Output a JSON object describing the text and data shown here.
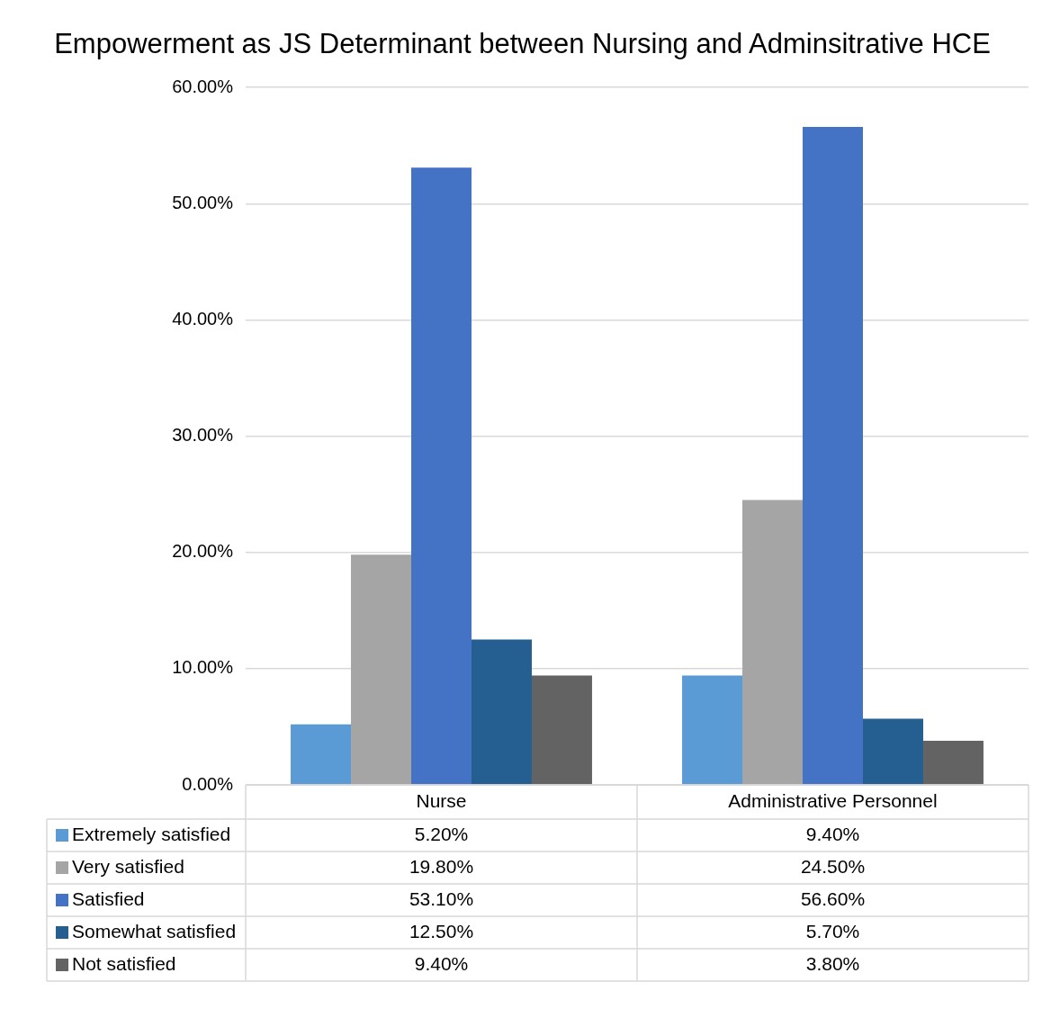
{
  "chart_data": {
    "type": "bar",
    "title": "Empowerment as JS Determinant between Nursing and Adminsitrative HCE",
    "categories": [
      "Nurse",
      "Administrative Personnel"
    ],
    "series": [
      {
        "name": "Extremely satisfied",
        "color": "#5b9bd5",
        "values": [
          5.2,
          9.4
        ],
        "value_labels": [
          "5.20%",
          "9.40%"
        ]
      },
      {
        "name": "Very satisfied",
        "color": "#a5a5a5",
        "values": [
          19.8,
          24.5
        ],
        "value_labels": [
          "19.80%",
          "24.50%"
        ]
      },
      {
        "name": "Satisfied",
        "color": "#4472c4",
        "values": [
          53.1,
          56.6
        ],
        "value_labels": [
          "53.10%",
          "56.60%"
        ]
      },
      {
        "name": "Somewhat satisfied",
        "color": "#255e91",
        "values": [
          12.5,
          5.7
        ],
        "value_labels": [
          "12.50%",
          "5.70%"
        ]
      },
      {
        "name": "Not satisfied",
        "color": "#636363",
        "values": [
          9.4,
          3.8
        ],
        "value_labels": [
          "9.40%",
          "3.80%"
        ]
      }
    ],
    "ylim": [
      0,
      60
    ],
    "yticks": [
      {
        "value": 0,
        "label": "0.00%"
      },
      {
        "value": 10,
        "label": "10.00%"
      },
      {
        "value": 20,
        "label": "20.00%"
      },
      {
        "value": 30,
        "label": "30.00%"
      },
      {
        "value": 40,
        "label": "40.00%"
      },
      {
        "value": 50,
        "label": "50.00%"
      },
      {
        "value": 60,
        "label": "60.00%"
      }
    ],
    "grid": "y",
    "legend": "bottom"
  }
}
